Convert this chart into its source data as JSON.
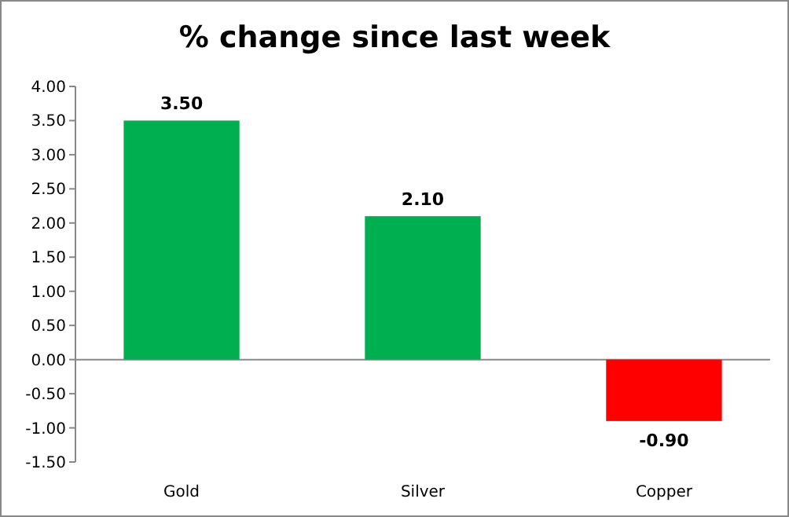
{
  "chart_data": {
    "type": "bar",
    "title": "% change since last week",
    "categories": [
      "Gold",
      "Silver",
      "Copper"
    ],
    "values": [
      3.5,
      2.1,
      -0.9
    ],
    "colors": [
      "#00b050",
      "#00b050",
      "#ff0000"
    ],
    "value_labels": [
      "3.50",
      "2.10",
      "-0.90"
    ],
    "ylim": [
      -1.5,
      4
    ],
    "yticks": [
      {
        "value": -1.5,
        "label": "-1.50"
      },
      {
        "value": -1,
        "label": "-1.00"
      },
      {
        "value": -0.5,
        "label": "-0.50"
      },
      {
        "value": 0,
        "label": "0.00"
      },
      {
        "value": 0.5,
        "label": "0.50"
      },
      {
        "value": 1,
        "label": "1.00"
      },
      {
        "value": 1.5,
        "label": "1.50"
      },
      {
        "value": 2,
        "label": "2.00"
      },
      {
        "value": 2.5,
        "label": "2.50"
      },
      {
        "value": 3,
        "label": "3.00"
      },
      {
        "value": 3.5,
        "label": "3.50"
      },
      {
        "value": 4,
        "label": "4.00"
      }
    ],
    "orientation": "vertical"
  }
}
